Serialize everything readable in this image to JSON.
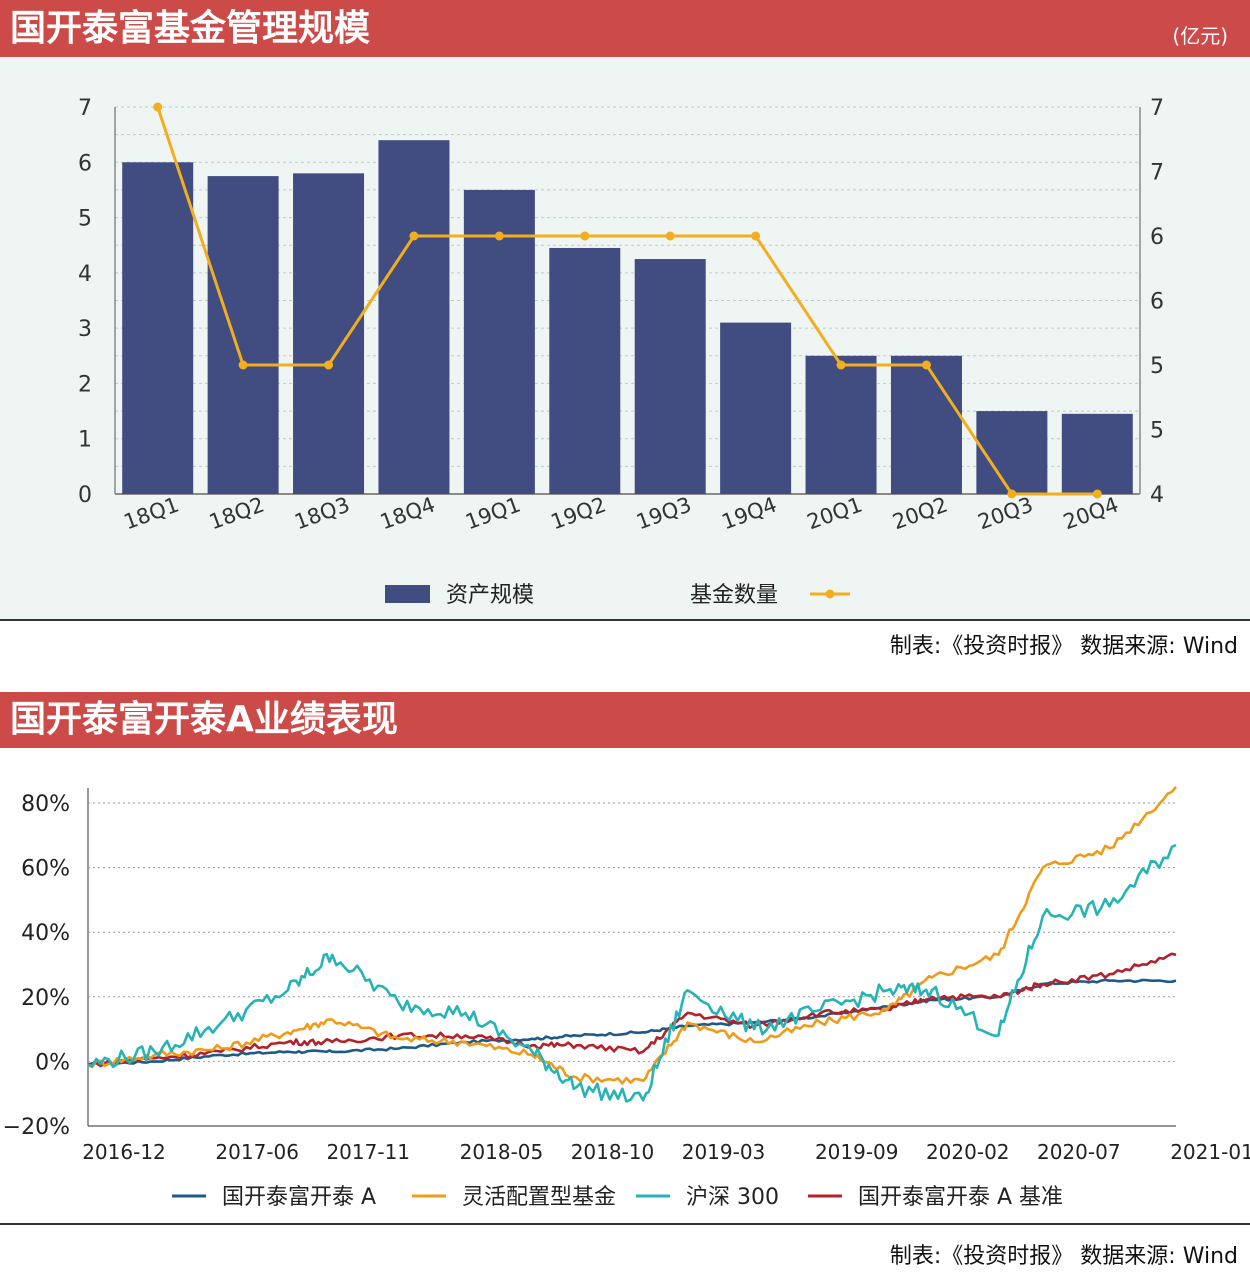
{
  "chart1": {
    "title": "国开泰富基金管理规模",
    "unit_label": "(亿元)",
    "source": "制表:《投资时报》 数据来源: Wind",
    "legend": {
      "bar": "资产规模",
      "line": "基金数量"
    },
    "left_ticks": [
      "0",
      "1",
      "2",
      "3",
      "4",
      "5",
      "6",
      "7"
    ],
    "right_ticks": [
      "4",
      "5",
      "5",
      "6",
      "6",
      "7",
      "7"
    ],
    "colors": {
      "bar": "#414c80",
      "line": "#f2ae1e"
    }
  },
  "chart2": {
    "title": "国开泰富开泰A业绩表现",
    "source": "制表:《投资时报》 数据来源: Wind",
    "y_ticks": [
      "80%",
      "60%",
      "40%",
      "20%",
      "0%",
      "−20%"
    ],
    "x_ticks": [
      "2016-12",
      "2017-06",
      "2017-11",
      "2018-05",
      "2018-10",
      "2019-03",
      "2019-09",
      "2020-02",
      "2020-07",
      "2021-01"
    ],
    "legend": [
      "国开泰富开泰 A",
      "灵活配置型基金",
      "沪深 300",
      "国开泰富开泰 A 基准"
    ]
  },
  "chart_data": [
    {
      "type": "bar",
      "categories": [
        "18Q1",
        "18Q2",
        "18Q3",
        "18Q4",
        "19Q1",
        "19Q2",
        "19Q3",
        "19Q4",
        "20Q1",
        "20Q2",
        "20Q3",
        "20Q4"
      ],
      "series": [
        {
          "name": "资产规模",
          "type": "bar",
          "axis": "left",
          "values": [
            6.0,
            5.75,
            5.8,
            6.4,
            5.5,
            4.45,
            4.25,
            3.1,
            2.5,
            2.5,
            1.5,
            1.45
          ]
        },
        {
          "name": "基金数量",
          "type": "line",
          "axis": "right",
          "values": [
            7,
            5,
            5,
            6,
            6,
            6,
            6,
            6,
            5,
            5,
            4,
            4
          ]
        }
      ],
      "ylim_left": [
        0,
        7
      ],
      "ylim_right": [
        4,
        7
      ]
    },
    {
      "type": "line",
      "x_range": [
        "2016-12",
        "2021-01"
      ],
      "ylim": [
        -20,
        80
      ],
      "y_unit": "%",
      "series": [
        {
          "name": "国开泰富开泰 A",
          "color": "#1d5a8a",
          "x": [
            "2016-12",
            "2017-03",
            "2017-06",
            "2017-09",
            "2017-11",
            "2018-02",
            "2018-05",
            "2018-08",
            "2018-10",
            "2019-01",
            "2019-03",
            "2019-06",
            "2019-09",
            "2019-12",
            "2020-02",
            "2020-05",
            "2020-07",
            "2020-10",
            "2021-01"
          ],
          "values": [
            -1,
            0,
            2,
            3,
            3,
            4,
            6,
            7,
            8,
            9,
            11,
            12,
            14,
            17,
            19,
            20,
            24,
            25,
            25
          ]
        },
        {
          "name": "灵活配置型基金",
          "color": "#f09a1a",
          "x": [
            "2016-12",
            "2017-03",
            "2017-06",
            "2017-09",
            "2017-11",
            "2018-02",
            "2018-05",
            "2018-08",
            "2018-10",
            "2019-01",
            "2019-03",
            "2019-06",
            "2019-09",
            "2019-12",
            "2020-02",
            "2020-05",
            "2020-07",
            "2020-10",
            "2021-01"
          ],
          "values": [
            -1,
            2,
            4,
            9,
            13,
            7,
            6,
            2,
            -5,
            -6,
            12,
            6,
            12,
            16,
            26,
            33,
            60,
            66,
            85
          ]
        },
        {
          "name": "沪深 300",
          "color": "#26b3b6",
          "x": [
            "2016-12",
            "2017-03",
            "2017-06",
            "2017-09",
            "2017-11",
            "2018-02",
            "2018-05",
            "2018-08",
            "2018-10",
            "2019-01",
            "2019-03",
            "2019-06",
            "2019-09",
            "2019-12",
            "2020-02",
            "2020-05",
            "2020-07",
            "2020-10",
            "2021-01"
          ],
          "values": [
            -1,
            3,
            12,
            22,
            33,
            18,
            15,
            3,
            -8,
            -12,
            22,
            10,
            16,
            22,
            22,
            8,
            45,
            48,
            67
          ]
        },
        {
          "name": "国开泰富开泰 A 基准",
          "color": "#b3222a",
          "x": [
            "2016-12",
            "2017-03",
            "2017-06",
            "2017-09",
            "2017-11",
            "2018-02",
            "2018-05",
            "2018-08",
            "2018-10",
            "2019-01",
            "2019-03",
            "2019-06",
            "2019-09",
            "2019-12",
            "2020-02",
            "2020-05",
            "2020-07",
            "2020-10",
            "2021-01"
          ],
          "values": [
            -1,
            1,
            3,
            6,
            6,
            8,
            8,
            5,
            5,
            3,
            15,
            11,
            15,
            16,
            20,
            20,
            24,
            27,
            33
          ]
        }
      ]
    }
  ]
}
